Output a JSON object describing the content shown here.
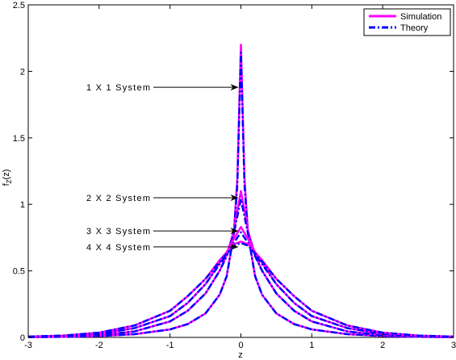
{
  "chart_data": {
    "type": "line",
    "xlabel": "z",
    "ylabel": "f",
    "ylabel_sub": "Z",
    "ylabel_tail": "(z)",
    "xlim": [
      -3,
      3
    ],
    "ylim": [
      0,
      2.5
    ],
    "xticks": [
      "-3",
      "-2",
      "-1",
      "0",
      "1",
      "2",
      "3"
    ],
    "yticks": [
      "0",
      "0.5",
      "1",
      "1.5",
      "2",
      "2.5"
    ],
    "grid": false,
    "legend": {
      "position": "top-right",
      "entries": [
        {
          "label": "Simulation",
          "color": "#ff00ff",
          "style": "solid"
        },
        {
          "label": "Theory",
          "color": "#0000ff",
          "style": "dashdot"
        }
      ]
    },
    "series": [
      {
        "system": 1,
        "peak_sim": 2.2,
        "peak_theory": 2.14,
        "z": [
          -3,
          -2.5,
          -2,
          -1.5,
          -1,
          -0.75,
          -0.5,
          -0.3,
          -0.2,
          -0.1,
          -0.05,
          0,
          0.05,
          0.1,
          0.2,
          0.3,
          0.5,
          0.75,
          1,
          1.5,
          2,
          2.5,
          3
        ],
        "sim": [
          0.002,
          0.004,
          0.01,
          0.024,
          0.06,
          0.1,
          0.18,
          0.32,
          0.46,
          0.78,
          1.2,
          2.2,
          1.2,
          0.78,
          0.46,
          0.32,
          0.18,
          0.1,
          0.06,
          0.024,
          0.01,
          0.004,
          0.002
        ],
        "theory": [
          0.002,
          0.004,
          0.01,
          0.024,
          0.06,
          0.1,
          0.18,
          0.32,
          0.46,
          0.77,
          1.15,
          2.14,
          1.15,
          0.77,
          0.46,
          0.32,
          0.18,
          0.1,
          0.06,
          0.024,
          0.01,
          0.004,
          0.002
        ]
      },
      {
        "system": 2,
        "peak_sim": 1.1,
        "peak_theory": 1.04,
        "z": [
          -3,
          -2.5,
          -2,
          -1.5,
          -1,
          -0.75,
          -0.5,
          -0.3,
          -0.2,
          -0.1,
          0,
          0.1,
          0.2,
          0.3,
          0.5,
          0.75,
          1,
          1.5,
          2,
          2.5,
          3
        ],
        "sim": [
          0.002,
          0.006,
          0.016,
          0.045,
          0.12,
          0.2,
          0.33,
          0.5,
          0.62,
          0.8,
          1.1,
          0.8,
          0.62,
          0.5,
          0.33,
          0.2,
          0.12,
          0.045,
          0.016,
          0.006,
          0.002
        ],
        "theory": [
          0.002,
          0.006,
          0.016,
          0.045,
          0.12,
          0.2,
          0.33,
          0.5,
          0.61,
          0.78,
          1.04,
          0.78,
          0.61,
          0.5,
          0.33,
          0.2,
          0.12,
          0.045,
          0.016,
          0.006,
          0.002
        ]
      },
      {
        "system": 3,
        "peak_sim": 0.83,
        "peak_theory": 0.79,
        "z": [
          -3,
          -2.5,
          -2,
          -1.5,
          -1,
          -0.75,
          -0.5,
          -0.3,
          -0.2,
          -0.1,
          0,
          0.1,
          0.2,
          0.3,
          0.5,
          0.75,
          1,
          1.5,
          2,
          2.5,
          3
        ],
        "sim": [
          0.004,
          0.01,
          0.026,
          0.07,
          0.16,
          0.26,
          0.4,
          0.56,
          0.64,
          0.74,
          0.83,
          0.74,
          0.64,
          0.56,
          0.4,
          0.26,
          0.16,
          0.07,
          0.026,
          0.01,
          0.004
        ],
        "theory": [
          0.004,
          0.01,
          0.026,
          0.07,
          0.16,
          0.26,
          0.4,
          0.55,
          0.62,
          0.71,
          0.79,
          0.71,
          0.62,
          0.55,
          0.4,
          0.26,
          0.16,
          0.07,
          0.026,
          0.01,
          0.004
        ]
      },
      {
        "system": 4,
        "peak_sim": 0.72,
        "peak_theory": 0.71,
        "z": [
          -3,
          -2.5,
          -2,
          -1.5,
          -1,
          -0.75,
          -0.5,
          -0.3,
          -0.2,
          -0.1,
          0,
          0.1,
          0.2,
          0.3,
          0.5,
          0.75,
          1,
          1.5,
          2,
          2.5,
          3
        ],
        "sim": [
          0.006,
          0.014,
          0.036,
          0.09,
          0.2,
          0.31,
          0.44,
          0.58,
          0.64,
          0.7,
          0.72,
          0.7,
          0.64,
          0.58,
          0.44,
          0.31,
          0.2,
          0.09,
          0.036,
          0.014,
          0.006
        ],
        "theory": [
          0.006,
          0.014,
          0.036,
          0.09,
          0.2,
          0.31,
          0.44,
          0.57,
          0.63,
          0.69,
          0.71,
          0.69,
          0.63,
          0.57,
          0.44,
          0.31,
          0.2,
          0.09,
          0.036,
          0.014,
          0.006
        ]
      }
    ],
    "annotations": [
      {
        "text": "1 X 1 System",
        "series": 1,
        "y": 1.88
      },
      {
        "text": "2 X 2 System",
        "series": 2,
        "y": 1.05
      },
      {
        "text": "3 X 3 System",
        "series": 3,
        "y": 0.8
      },
      {
        "text": "4 X 4 System",
        "series": 4,
        "y": 0.68
      }
    ]
  }
}
